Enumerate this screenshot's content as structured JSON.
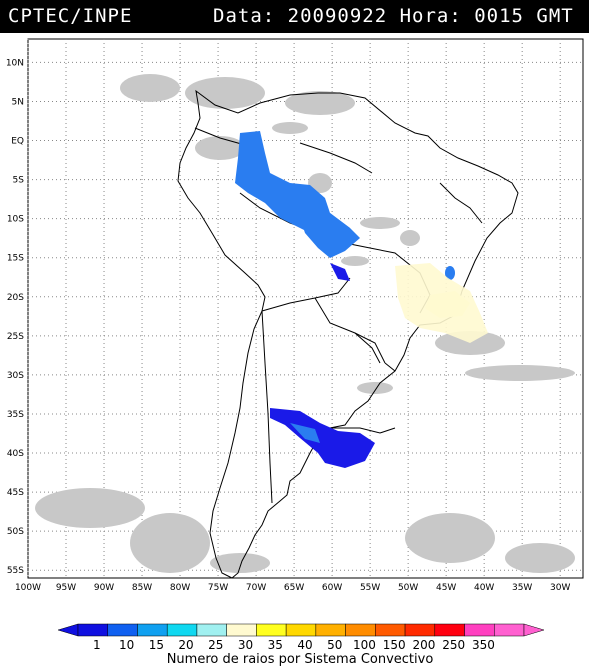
{
  "header": {
    "organization": "CPTEC/INPE",
    "timestamp": "Data: 20090922 Hora: 0015 GMT"
  },
  "map": {
    "lat_labels": [
      "10N",
      "5N",
      "EQ",
      "5S",
      "10S",
      "15S",
      "20S",
      "25S",
      "30S",
      "35S",
      "40S",
      "45S",
      "50S",
      "55S"
    ],
    "lat_values": [
      10,
      5,
      0,
      -5,
      -10,
      -15,
      -20,
      -25,
      -30,
      -35,
      -40,
      -45,
      -50,
      -55
    ],
    "lon_labels": [
      "100W",
      "95W",
      "90W",
      "85W",
      "80W",
      "75W",
      "70W",
      "65W",
      "60W",
      "55W",
      "50W",
      "45W",
      "40W",
      "35W",
      "30W"
    ],
    "lon_values": [
      -100,
      -95,
      -90,
      -85,
      -80,
      -75,
      -70,
      -65,
      -60,
      -55,
      -50,
      -45,
      -40,
      -35,
      -30
    ],
    "lon_range": [
      -100,
      -27
    ],
    "lat_range": [
      13,
      -56
    ],
    "grid": "dotted",
    "colors": {
      "land_outline": "#000000",
      "cloud_gray": "#c8c8c8",
      "storm_light_blue": "#2a7df0",
      "storm_dark_blue": "#1a1ae8",
      "storm_light_yellow": "#fffad0"
    },
    "convective_systems": [
      {
        "region": "amazon-west",
        "color": "#2a7df0"
      },
      {
        "region": "amazon-south",
        "color": "#2a7df0"
      },
      {
        "region": "argentina",
        "color": "#1a1ae8"
      },
      {
        "region": "southeast-brazil",
        "color": "#fffad0"
      }
    ]
  },
  "colorbar": {
    "title": "Numero de raios por Sistema Convectivo",
    "ticks": [
      "1",
      "10",
      "15",
      "20",
      "25",
      "30",
      "35",
      "40",
      "50",
      "100",
      "150",
      "200",
      "250",
      "350"
    ],
    "colors": [
      "#1010e0",
      "#1060f0",
      "#10a0f0",
      "#10d8f0",
      "#a0f0f0",
      "#fffad0",
      "#ffff20",
      "#ffd800",
      "#ffb000",
      "#ff8c00",
      "#ff5a00",
      "#ff2a00",
      "#ff0010",
      "#ff40c0",
      "#ff60d0"
    ]
  }
}
